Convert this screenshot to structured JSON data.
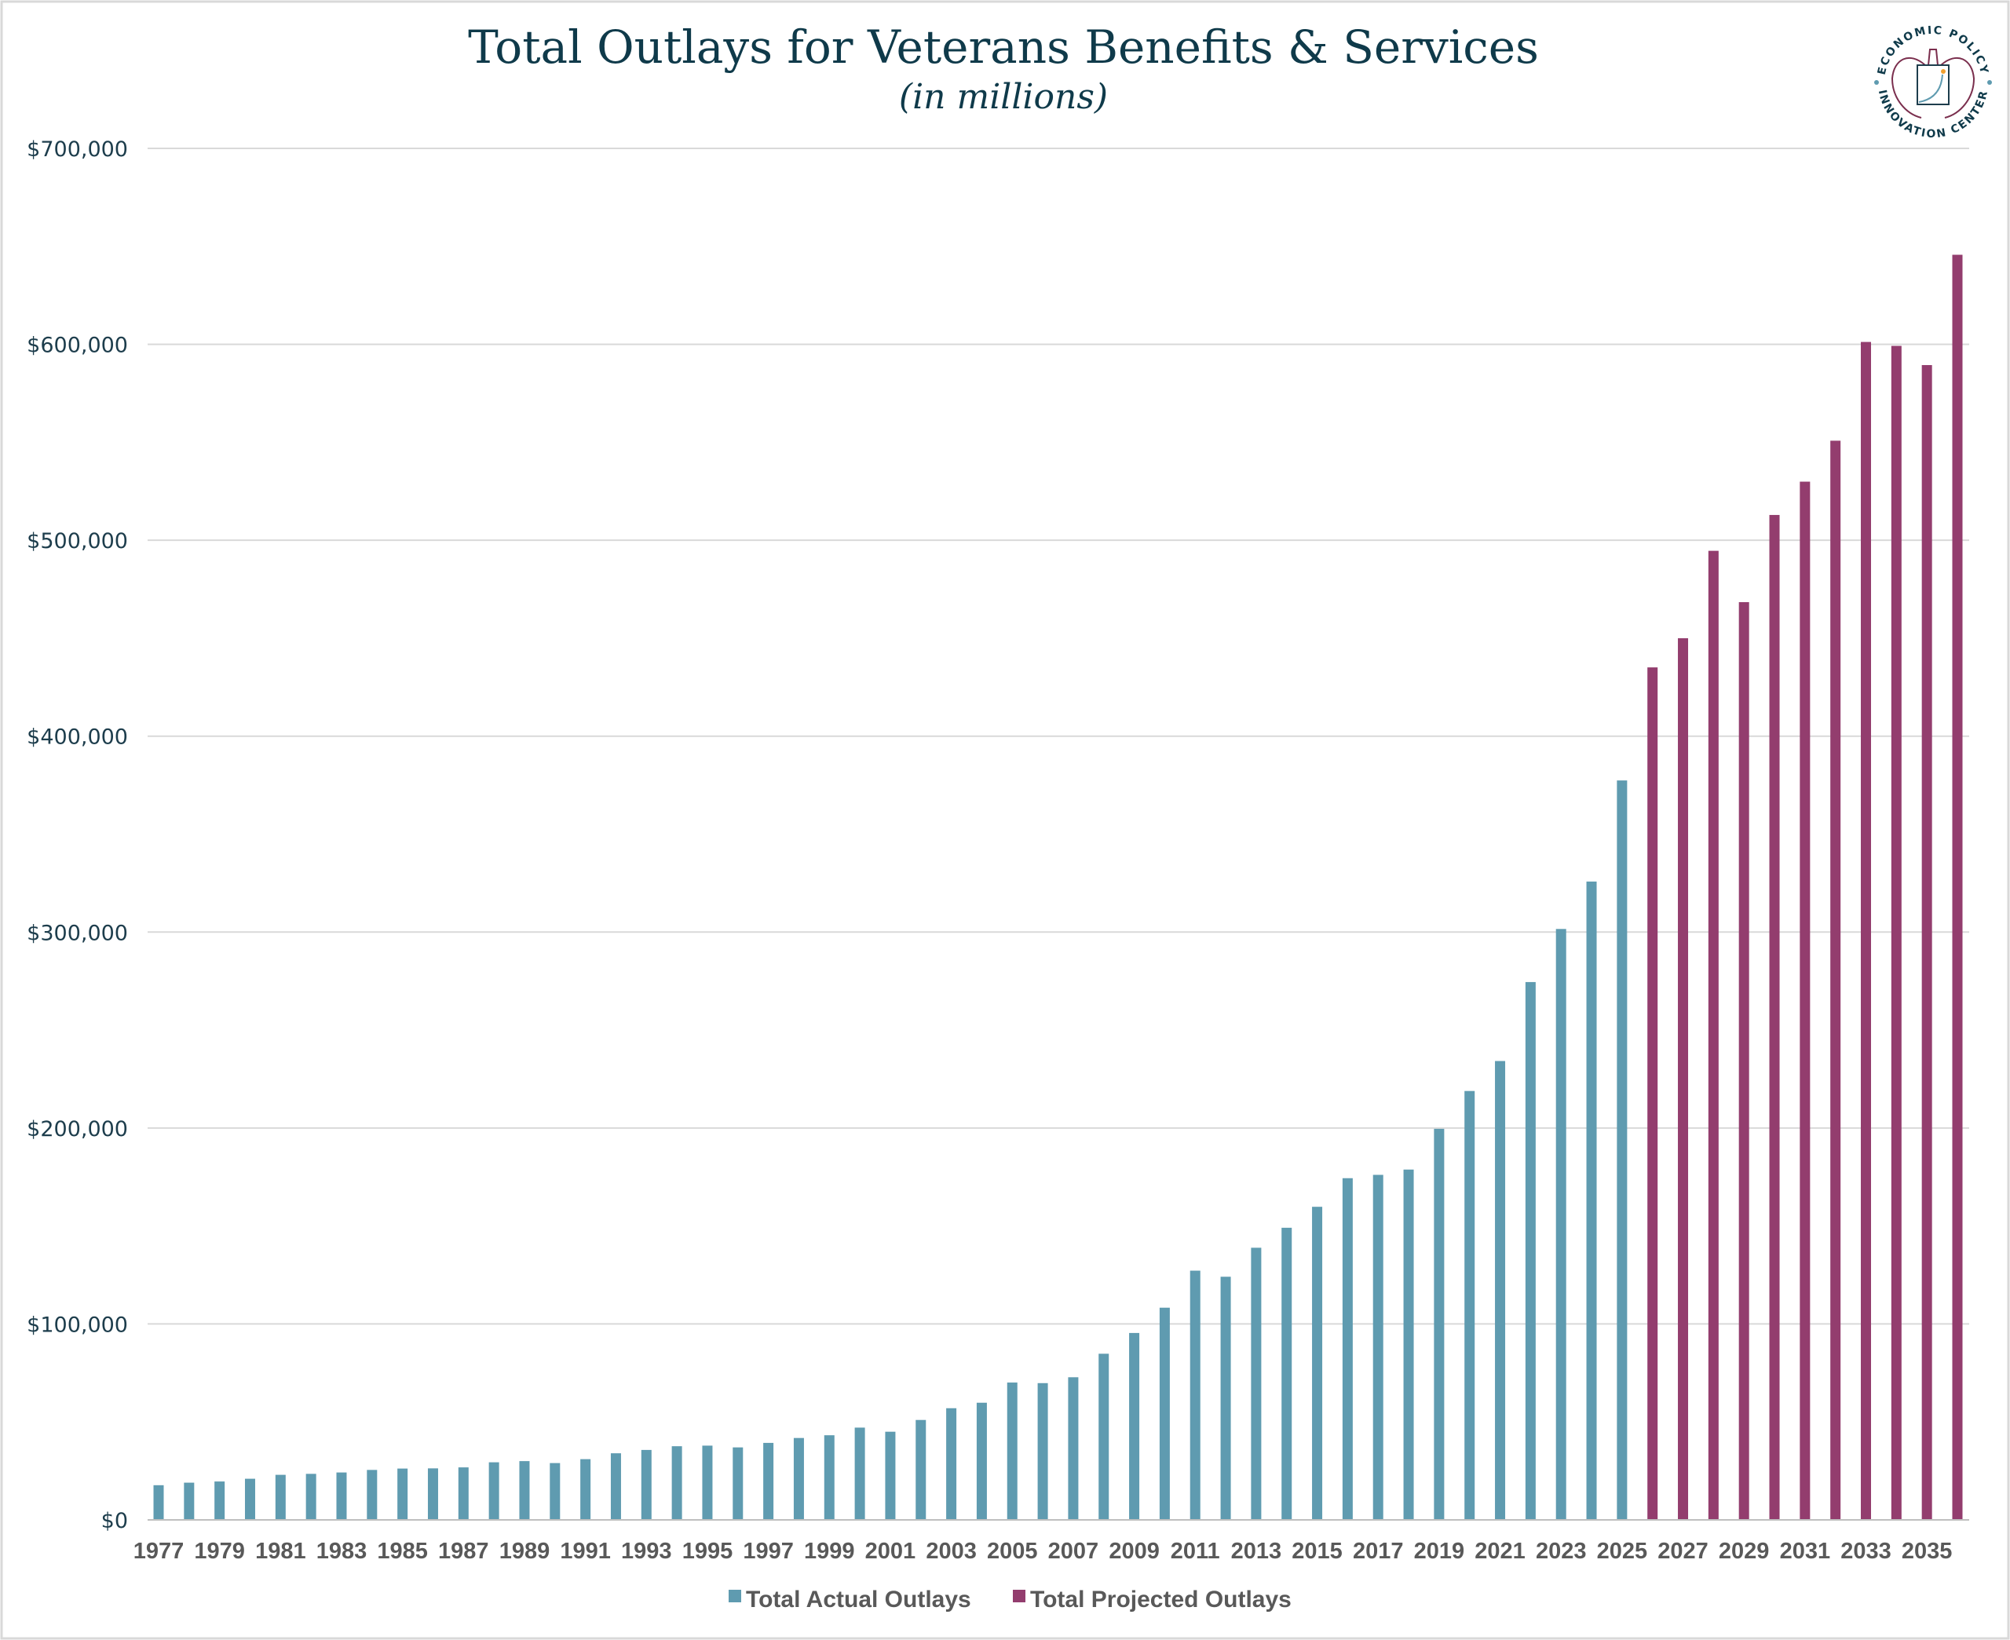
{
  "chart_data": {
    "type": "bar",
    "title": "Total Outlays for Veterans Benefits & Services",
    "subtitle": "(in millions)",
    "xlabel": "",
    "ylabel": "",
    "ylim": [
      0,
      700000
    ],
    "yticks": [
      "$0",
      "$100,000",
      "$200,000",
      "$300,000",
      "$400,000",
      "$500,000",
      "$600,000",
      "$700,000"
    ],
    "grid": true,
    "legend_position": "bottom",
    "categories": [
      1977,
      1978,
      1979,
      1980,
      1981,
      1982,
      1983,
      1984,
      1985,
      1986,
      1987,
      1988,
      1989,
      1990,
      1991,
      1992,
      1993,
      1994,
      1995,
      1996,
      1997,
      1998,
      1999,
      2000,
      2001,
      2002,
      2003,
      2004,
      2005,
      2006,
      2007,
      2008,
      2009,
      2010,
      2011,
      2012,
      2013,
      2014,
      2015,
      2016,
      2017,
      2018,
      2019,
      2020,
      2021,
      2022,
      2023,
      2024,
      2025,
      2026,
      2027,
      2028,
      2029,
      2030,
      2031,
      2032,
      2033,
      2034,
      2035,
      2036
    ],
    "xtick_labels": [
      "1977",
      "1979",
      "1981",
      "1983",
      "1985",
      "1987",
      "1989",
      "1991",
      "1993",
      "1995",
      "1997",
      "1999",
      "2001",
      "2003",
      "2005",
      "2007",
      "2009",
      "2011",
      "2013",
      "2015",
      "2017",
      "2019",
      "2021",
      "2023",
      "2025",
      "2027",
      "2029",
      "2031",
      "2033",
      "2035"
    ],
    "series": [
      {
        "name": "Total Actual Outlays",
        "color": "#5f9bb0",
        "values": [
          17700,
          19000,
          19600,
          21000,
          23000,
          23500,
          24200,
          25500,
          26200,
          26300,
          26800,
          29400,
          30000,
          29000,
          31000,
          34000,
          35700,
          37600,
          37900,
          37000,
          39300,
          41800,
          43200,
          47100,
          45000,
          51000,
          57000,
          59800,
          70100,
          69800,
          72800,
          84800,
          95400,
          108300,
          127200,
          124100,
          138900,
          149100,
          159800,
          174400,
          176100,
          178800,
          199600,
          218900,
          234200,
          274500,
          301600,
          325800,
          377400,
          null,
          null,
          null,
          null,
          null,
          null,
          null,
          null,
          null,
          null,
          null
        ]
      },
      {
        "name": "Total Projected Outlays",
        "color": "#933d6e",
        "values": [
          null,
          null,
          null,
          null,
          null,
          null,
          null,
          null,
          null,
          null,
          null,
          null,
          null,
          null,
          null,
          null,
          null,
          null,
          null,
          null,
          null,
          null,
          null,
          null,
          null,
          null,
          null,
          null,
          null,
          null,
          null,
          null,
          null,
          null,
          null,
          null,
          null,
          null,
          null,
          null,
          null,
          null,
          null,
          null,
          null,
          null,
          null,
          null,
          null,
          435100,
          450000,
          494600,
          468400,
          512900,
          529900,
          550800,
          601200,
          599200,
          589400,
          645700
        ]
      }
    ]
  },
  "logo": {
    "top_text": "ECONOMIC POLICY",
    "bottom_text": "INNOVATION CENTER"
  }
}
